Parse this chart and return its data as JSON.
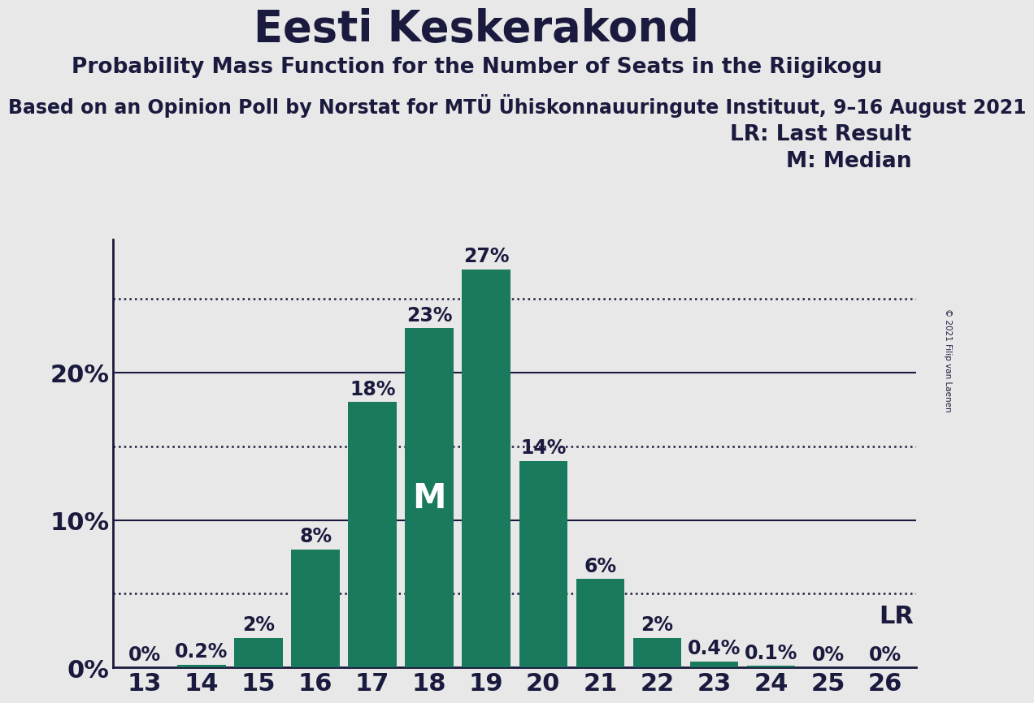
{
  "title": "Eesti Keskerakond",
  "subtitle": "Probability Mass Function for the Number of Seats in the Riigikogu",
  "source_line": "Based on an Opinion Poll by Norstat for MTÜ Ühiskonnauuringute Instituut, 9–16 August 2021",
  "copyright": "© 2021 Filip van Laenen",
  "categories": [
    13,
    14,
    15,
    16,
    17,
    18,
    19,
    20,
    21,
    22,
    23,
    24,
    25,
    26
  ],
  "values": [
    0.0,
    0.2,
    2.0,
    8.0,
    18.0,
    23.0,
    27.0,
    14.0,
    6.0,
    2.0,
    0.4,
    0.1,
    0.0,
    0.0
  ],
  "bar_color": "#1a7a5e",
  "bg_color": "#e8e8e8",
  "plot_bg_color": "#e8e8e8",
  "text_color": "#1a1a3e",
  "median_seat": 18,
  "lr_seat": 26,
  "lr_label": "LR",
  "median_label": "M",
  "legend_lr": "LR: Last Result",
  "legend_m": "M: Median",
  "ytick_labels": [
    "0%",
    "",
    "10%",
    "",
    "20%",
    ""
  ],
  "ytick_values": [
    0,
    5,
    10,
    15,
    20,
    25
  ],
  "ylim": [
    0,
    29
  ],
  "title_fontsize": 38,
  "subtitle_fontsize": 19,
  "source_fontsize": 17,
  "bar_label_fontsize": 17,
  "axis_label_fontsize": 22,
  "legend_fontsize": 19,
  "median_fontsize": 30
}
